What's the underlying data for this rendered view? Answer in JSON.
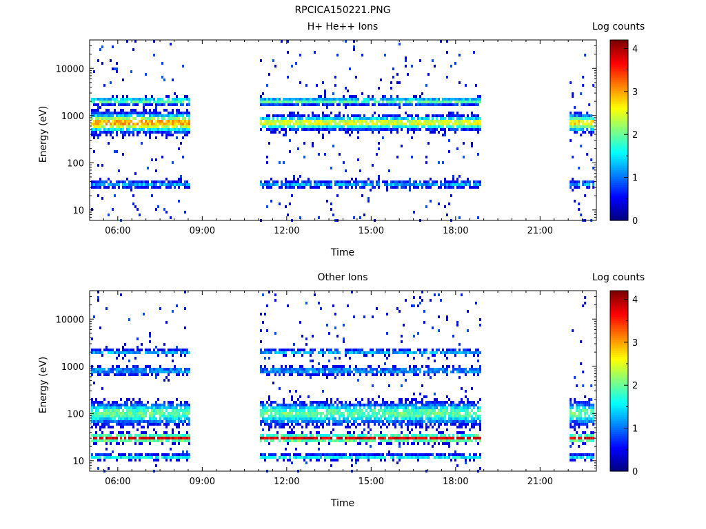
{
  "figure": {
    "title": "RPCICA150221.PNG"
  },
  "colorscale": {
    "stops": [
      "#00007f",
      "#0000ff",
      "#0080ff",
      "#00ffff",
      "#80ff80",
      "#ffff00",
      "#ff8000",
      "#ff0000",
      "#7f0000"
    ]
  },
  "chart_data": [
    {
      "type": "heatmap",
      "title": "H+ He++ Ions",
      "xlabel": "Time",
      "ylabel": "Energy (eV)",
      "x_unit": "hours",
      "xlim": [
        5.0,
        23.0
      ],
      "x_ticks": [
        6,
        9,
        12,
        15,
        18,
        21
      ],
      "x_tick_labels": [
        "06:00",
        "09:00",
        "12:00",
        "15:00",
        "18:00",
        "21:00"
      ],
      "ylim": [
        6,
        40000
      ],
      "yscale": "log",
      "y_ticks": [
        10,
        100,
        1000,
        10000
      ],
      "y_tick_labels": [
        "10",
        "100",
        "1000",
        "10000"
      ],
      "colorbar": {
        "label": "Log counts",
        "range": [
          0,
          4.2
        ],
        "ticks": [
          0,
          1,
          2,
          3,
          4
        ],
        "tick_labels": [
          "0",
          "1",
          "2",
          "3",
          "4"
        ]
      },
      "data_intervals": [
        [
          5.05,
          8.55
        ],
        [
          11.05,
          18.85
        ],
        [
          22.05,
          22.9
        ]
      ],
      "bands": [
        {
          "energy": 2000,
          "level": 2.0,
          "width": 0.07,
          "start": 5.05,
          "end": 18.85
        },
        {
          "energy": 700,
          "level": 3.0,
          "width": 0.17,
          "start": 5.05,
          "end": 8.55
        },
        {
          "energy": 700,
          "level": 2.6,
          "width": 0.12,
          "start": 11.05,
          "end": 18.85
        },
        {
          "energy": 700,
          "level": 2.8,
          "width": 0.15,
          "start": 22.05,
          "end": 22.9
        },
        {
          "energy": 35,
          "level": 1.2,
          "width": 0.07,
          "start": 5.05,
          "end": 22.9
        }
      ]
    },
    {
      "type": "heatmap",
      "title": "Other Ions",
      "xlabel": "Time",
      "ylabel": "Energy (eV)",
      "x_unit": "hours",
      "xlim": [
        5.0,
        23.0
      ],
      "x_ticks": [
        6,
        9,
        12,
        15,
        18,
        21
      ],
      "x_tick_labels": [
        "06:00",
        "09:00",
        "12:00",
        "15:00",
        "18:00",
        "21:00"
      ],
      "ylim": [
        6,
        40000
      ],
      "yscale": "log",
      "y_ticks": [
        10,
        100,
        1000,
        10000
      ],
      "y_tick_labels": [
        "10",
        "100",
        "1000",
        "10000"
      ],
      "colorbar": {
        "label": "Log counts",
        "range": [
          0,
          4.2
        ],
        "ticks": [
          0,
          1,
          2,
          3,
          4
        ],
        "tick_labels": [
          "0",
          "1",
          "2",
          "3",
          "4"
        ]
      },
      "data_intervals": [
        [
          5.05,
          8.55
        ],
        [
          11.05,
          18.85
        ],
        [
          22.05,
          22.9
        ]
      ],
      "bands": [
        {
          "energy": 2000,
          "level": 1.3,
          "width": 0.05,
          "start": 5.05,
          "end": 18.85
        },
        {
          "energy": 800,
          "level": 1.2,
          "width": 0.08,
          "start": 5.05,
          "end": 18.85
        },
        {
          "energy": 100,
          "level": 2.0,
          "width": 0.2,
          "start": 5.05,
          "end": 22.9
        },
        {
          "energy": 30,
          "level": 3.8,
          "width": 0.07,
          "start": 5.05,
          "end": 22.9
        },
        {
          "energy": 12,
          "level": 1.6,
          "width": 0.05,
          "start": 5.05,
          "end": 22.9
        }
      ]
    }
  ]
}
